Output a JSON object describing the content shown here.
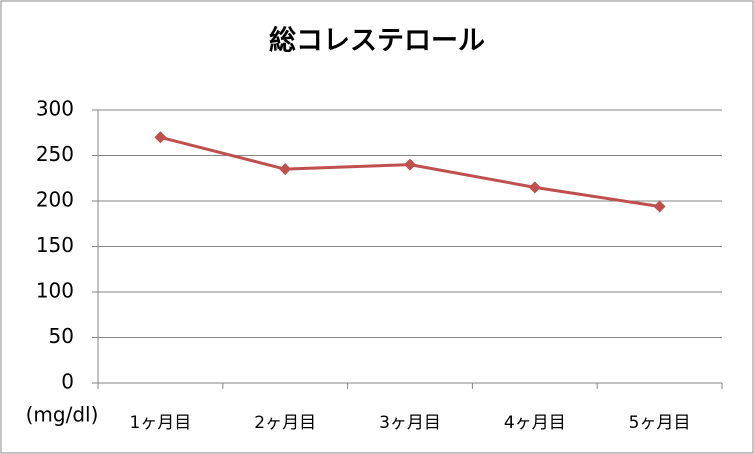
{
  "chart_data": {
    "type": "line",
    "title": "総コレステロール",
    "y_label": "(mg/dl)",
    "categories": [
      "1ヶ月目",
      "2ヶ月目",
      "3ヶ月目",
      "4ヶ月目",
      "5ヶ月目"
    ],
    "series": [
      {
        "name": "総コレステロール",
        "color": "#c0504d",
        "values": [
          270,
          235,
          240,
          215,
          194
        ]
      }
    ],
    "ylim": [
      0,
      300
    ],
    "yticks": [
      0,
      50,
      100,
      150,
      200,
      250,
      300
    ],
    "grid": true
  }
}
